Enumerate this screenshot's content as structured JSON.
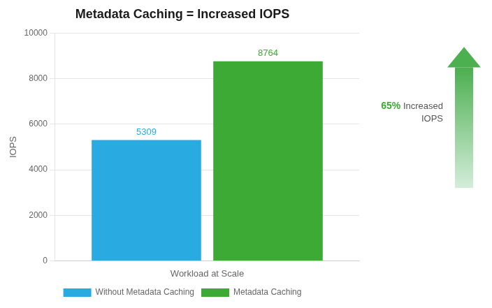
{
  "chart_data": {
    "type": "bar",
    "title": "Metadata Caching = Increased IOPS",
    "ylabel": "IOPS",
    "categories": [
      "Workload at Scale"
    ],
    "series": [
      {
        "name": "Without Metadata Caching",
        "color": "#29ABE2",
        "values": [
          5309
        ]
      },
      {
        "name": "Metadata Caching",
        "color": "#3DAA35",
        "values": [
          8764
        ]
      }
    ],
    "ylim": [
      0,
      10000
    ],
    "yticks": [
      0,
      2000,
      4000,
      6000,
      8000,
      10000
    ],
    "grid": true,
    "legend": "bottom",
    "data_labels": true,
    "annotations": [
      "65% Increased\nIOPS"
    ]
  }
}
